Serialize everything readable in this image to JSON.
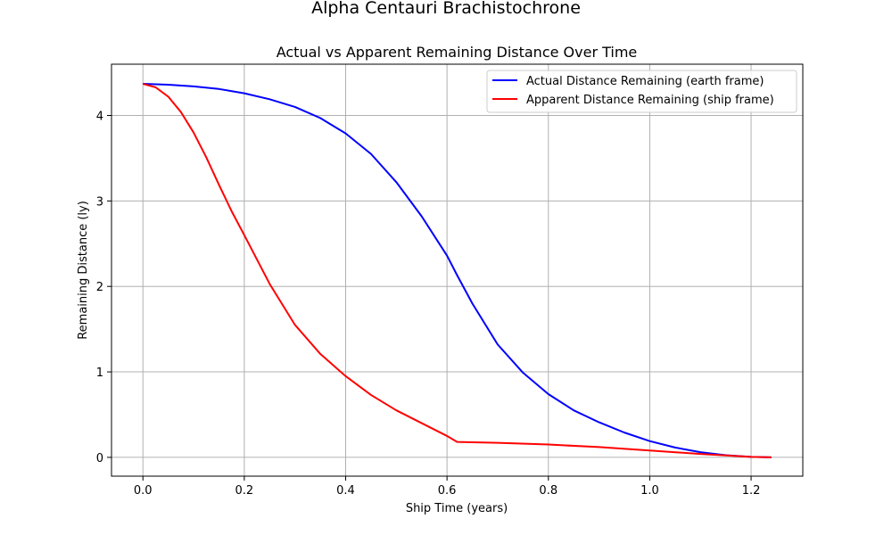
{
  "figure": {
    "suptitle": "Alpha Centauri Brachistochrone"
  },
  "chart_data": {
    "type": "line",
    "title": "Actual vs Apparent Remaining Distance Over Time",
    "xlabel": "Ship Time (years)",
    "ylabel": "Remaining Distance (ly)",
    "xlim": [
      -0.062,
      1.302
    ],
    "ylim": [
      -0.22,
      4.6
    ],
    "xticks": [
      0.0,
      0.2,
      0.4,
      0.6,
      0.8,
      1.0,
      1.2
    ],
    "xtick_labels": [
      "0.0",
      "0.2",
      "0.4",
      "0.6",
      "0.8",
      "1.0",
      "1.2"
    ],
    "yticks": [
      0,
      1,
      2,
      3,
      4
    ],
    "ytick_labels": [
      "0",
      "1",
      "2",
      "3",
      "4"
    ],
    "grid": true,
    "legend_position": "top-right",
    "series": [
      {
        "name": "Actual Distance Remaining (earth frame)",
        "color": "#0000ff",
        "x": [
          0.0,
          0.05,
          0.1,
          0.15,
          0.2,
          0.25,
          0.3,
          0.35,
          0.4,
          0.45,
          0.5,
          0.55,
          0.6,
          0.62,
          0.65,
          0.7,
          0.75,
          0.8,
          0.85,
          0.9,
          0.95,
          1.0,
          1.05,
          1.1,
          1.15,
          1.2,
          1.24
        ],
        "y": [
          4.37,
          4.36,
          4.34,
          4.31,
          4.26,
          4.19,
          4.1,
          3.97,
          3.79,
          3.55,
          3.22,
          2.82,
          2.36,
          2.13,
          1.8,
          1.32,
          0.99,
          0.74,
          0.55,
          0.41,
          0.29,
          0.19,
          0.115,
          0.06,
          0.025,
          0.005,
          0.0
        ]
      },
      {
        "name": "Apparent Distance Remaining (ship frame)",
        "color": "#ff0000",
        "x": [
          0.0,
          0.025,
          0.05,
          0.075,
          0.1,
          0.125,
          0.15,
          0.175,
          0.2,
          0.25,
          0.3,
          0.35,
          0.4,
          0.45,
          0.5,
          0.55,
          0.6,
          0.62,
          0.7,
          0.8,
          0.9,
          1.0,
          1.1,
          1.2,
          1.24
        ],
        "y": [
          4.37,
          4.33,
          4.22,
          4.04,
          3.8,
          3.51,
          3.19,
          2.88,
          2.6,
          2.03,
          1.55,
          1.21,
          0.95,
          0.73,
          0.55,
          0.4,
          0.25,
          0.18,
          0.17,
          0.15,
          0.12,
          0.08,
          0.04,
          0.005,
          0.0
        ]
      }
    ]
  }
}
